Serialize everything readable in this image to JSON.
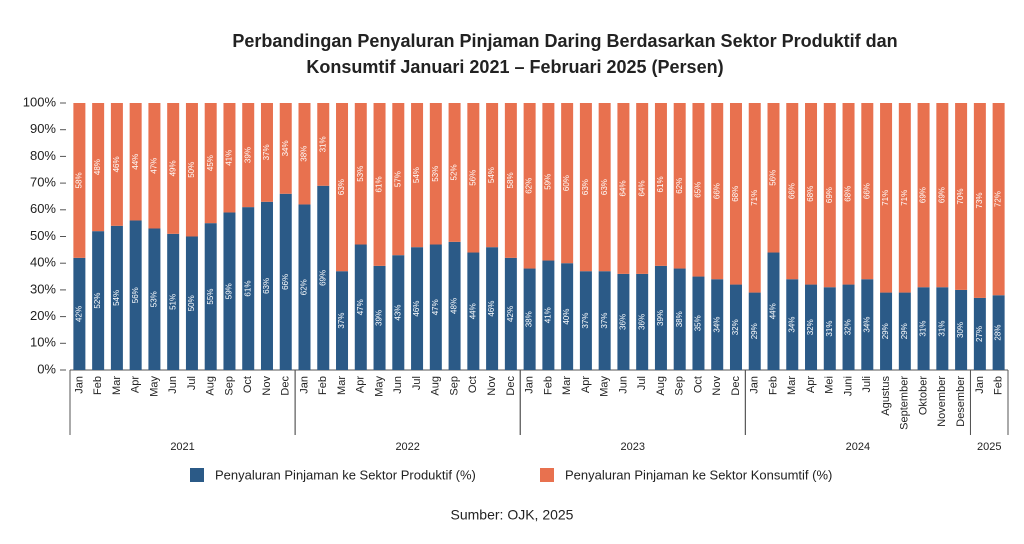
{
  "chart_data": {
    "type": "stacked-bar",
    "title": [
      "Perbandingan Penyaluran Pinjaman Daring Berdasarkan Sektor Produktif dan",
      "Konsumtif Januari 2021 – Februari 2025 (Persen)"
    ],
    "groups": [
      {
        "name": "2021",
        "categories": [
          "Jan",
          "Feb",
          "Mar",
          "Apr",
          "May",
          "Jun",
          "Jul",
          "Aug",
          "Sep",
          "Oct",
          "Nov",
          "Dec"
        ]
      },
      {
        "name": "2022",
        "categories": [
          "Jan",
          "Feb",
          "Mar",
          "Apr",
          "May",
          "Jun",
          "Jul",
          "Aug",
          "Sep",
          "Oct",
          "Nov",
          "Dec"
        ]
      },
      {
        "name": "2023",
        "categories": [
          "Jan",
          "Feb",
          "Mar",
          "Apr",
          "May",
          "Jun",
          "Jul",
          "Aug",
          "Sep",
          "Oct",
          "Nov",
          "Dec"
        ]
      },
      {
        "name": "2024",
        "categories": [
          "Jan",
          "Feb",
          "Mar",
          "Apr",
          "Mei",
          "Juni",
          "Juli",
          "Agustus",
          "September",
          "Oktober",
          "November",
          "Desember"
        ]
      },
      {
        "name": "2025",
        "categories": [
          "Jan",
          "Feb"
        ]
      }
    ],
    "series": [
      {
        "name": "Penyaluran Pinjaman ke Sektor Produktif (%)",
        "color": "#2b5a87",
        "values": [
          42,
          52,
          54,
          56,
          53,
          51,
          50,
          55,
          59,
          61,
          63,
          66,
          62,
          69,
          37,
          47,
          39,
          43,
          46,
          47,
          48,
          44,
          46,
          42,
          38,
          41,
          40,
          37,
          37,
          36,
          36,
          39,
          38,
          35,
          34,
          32,
          29,
          44,
          34,
          32,
          31,
          32,
          34,
          29,
          29,
          31,
          31,
          30,
          27,
          28
        ],
        "value_labels": [
          "42%",
          "52%",
          "54%",
          "56%",
          "53%",
          "51%",
          "50%",
          "55%",
          "59%",
          "61%",
          "63%",
          "66%",
          "62%",
          "69%",
          "37%",
          "47%",
          "39%",
          "43%",
          "46%",
          "47%",
          "48%",
          "44%",
          "46%",
          "42%",
          "38%",
          "41%",
          "40%",
          "37%",
          "37%",
          "36%",
          "36%",
          "39%",
          "38%",
          "35%",
          "34%",
          "32%",
          "29%",
          "44%",
          "34%",
          "32%",
          "31%",
          "32%",
          "34%",
          "29%",
          "29%",
          "31%",
          "31%",
          "30%",
          "27%",
          "28%"
        ]
      },
      {
        "name": "Penyaluran Pinjaman ke Sektor Konsumtif (%)",
        "color": "#e8714f",
        "values": [
          58,
          48,
          46,
          44,
          47,
          49,
          50,
          45,
          41,
          39,
          37,
          34,
          38,
          31,
          63,
          53,
          61,
          57,
          54,
          53,
          52,
          56,
          54,
          58,
          62,
          59,
          60,
          63,
          63,
          64,
          64,
          61,
          62,
          65,
          66,
          68,
          71,
          56,
          66,
          68,
          69,
          68,
          66,
          71,
          71,
          69,
          69,
          70,
          73,
          72
        ],
        "value_labels": [
          "58%",
          "48%",
          "46%",
          "44%",
          "47%",
          "49%",
          "50%",
          "45%",
          "41%",
          "39%",
          "37%",
          "34%",
          "38%",
          "31%",
          "63%",
          "53%",
          "61%",
          "57%",
          "54%",
          "53%",
          "52%",
          "56%",
          "54%",
          "58%",
          "62%",
          "59%",
          "60%",
          "63%",
          "63%",
          "64%",
          "64%",
          "61%",
          "62%",
          "65%",
          "66%",
          "68%",
          "71%",
          "56%",
          "66%",
          "68%",
          "69%",
          "68%",
          "66%",
          "71%",
          "71%",
          "69%",
          "69%",
          "70%",
          "73%",
          "72%"
        ]
      }
    ],
    "ylim": [
      0,
      100
    ],
    "yticks": [
      {
        "value": 0,
        "label": "0%"
      },
      {
        "value": 10,
        "label": "10%"
      },
      {
        "value": 20,
        "label": "20%"
      },
      {
        "value": 30,
        "label": "30%"
      },
      {
        "value": 40,
        "label": "40%"
      },
      {
        "value": 50,
        "label": "50%"
      },
      {
        "value": 60,
        "label": "60%"
      },
      {
        "value": 70,
        "label": "70%"
      },
      {
        "value": 80,
        "label": "80%"
      },
      {
        "value": 90,
        "label": "90%"
      },
      {
        "value": 100,
        "label": "100%"
      }
    ],
    "source": "Sumber: OJK, 2025"
  }
}
